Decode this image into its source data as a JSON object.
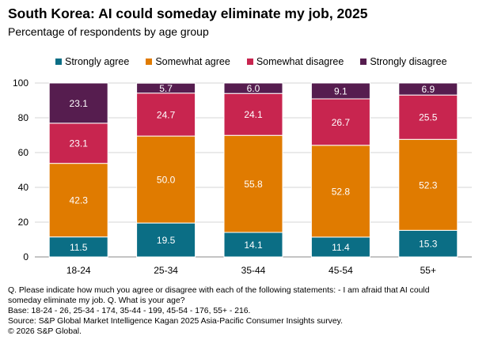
{
  "title": "South Korea: AI could someday eliminate my job, 2025",
  "subtitle": "Percentage of respondents by age group",
  "chart_data": {
    "type": "bar",
    "stacked": true,
    "categories": [
      "18-24",
      "25-34",
      "35-44",
      "45-54",
      "55+"
    ],
    "series": [
      {
        "name": "Strongly agree",
        "color": "#0b6e85",
        "values": [
          11.5,
          19.5,
          14.1,
          11.4,
          15.3
        ]
      },
      {
        "name": "Somewhat agree",
        "color": "#e07b00",
        "values": [
          42.3,
          50.0,
          55.8,
          52.8,
          52.3
        ]
      },
      {
        "name": "Somewhat disagree",
        "color": "#c8254f",
        "values": [
          23.1,
          24.7,
          24.1,
          26.7,
          25.5
        ]
      },
      {
        "name": "Strongly disagree",
        "color": "#561d4f",
        "values": [
          23.1,
          5.7,
          6.0,
          9.1,
          6.9
        ]
      }
    ],
    "data_labels": [
      [
        "11.5",
        "19.5",
        "14.1",
        "11.4",
        "15.3"
      ],
      [
        "42.3",
        "50.0",
        "55.8",
        "52.8",
        "52.3"
      ],
      [
        "23.1",
        "24.7",
        "24.1",
        "26.7",
        "25.5"
      ],
      [
        "23.1",
        "5.7",
        "6.0",
        "9.1",
        "6.9"
      ]
    ],
    "ylim": [
      0,
      100
    ],
    "yticks": [
      0,
      20,
      40,
      60,
      80,
      100
    ],
    "ytick_labels": [
      "0",
      "20",
      "40",
      "60",
      "80",
      "100"
    ],
    "grid": true,
    "legend_position": "top",
    "xlabel": "",
    "ylabel": ""
  },
  "footnotes": [
    "Q. Please indicate how much you agree or disagree with each of the following statements: - I am afraid that AI could",
    "someday eliminate my job. Q. What is your age?",
    "Base: 18-24 - 26, 25-34 - 174, 35-44 - 199, 45-54 - 176, 55+ - 216.",
    "Source: S&P Global Market Intelligence Kagan 2025 Asia-Pacific Consumer Insights survey.",
    "© 2026 S&P Global."
  ]
}
